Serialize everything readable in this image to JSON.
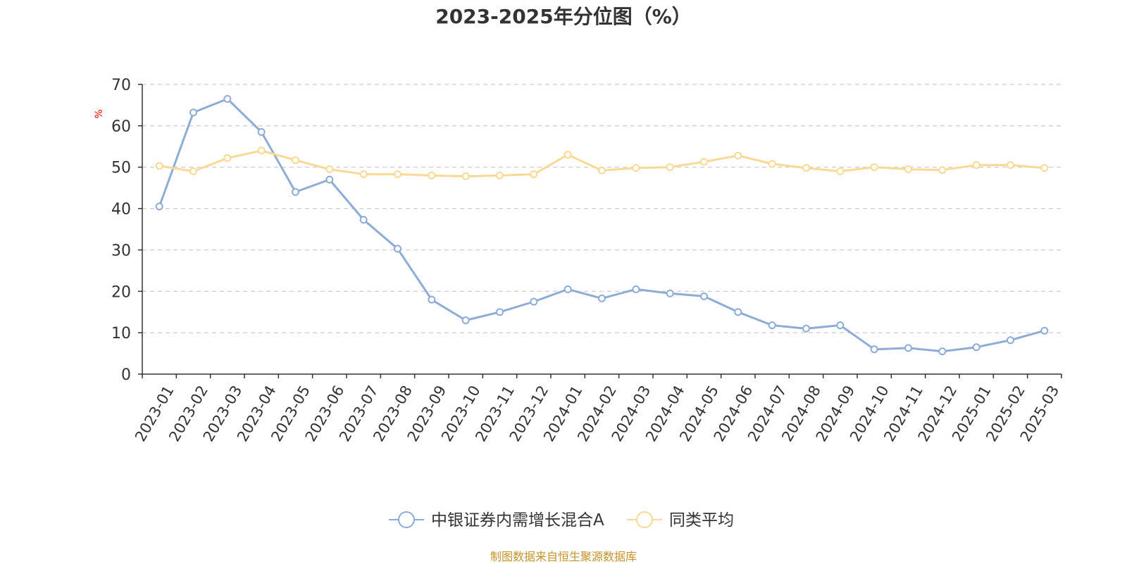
{
  "chart_data": {
    "type": "line",
    "title": "2023-2025年分位图（%）",
    "ylabel": "%",
    "ylim": [
      0,
      70
    ],
    "yticks": [
      0,
      10,
      20,
      30,
      40,
      50,
      60,
      70
    ],
    "grid": true,
    "legend_position": "bottom-center",
    "categories": [
      "2023-01",
      "2023-02",
      "2023-03",
      "2023-04",
      "2023-05",
      "2023-06",
      "2023-07",
      "2023-08",
      "2023-09",
      "2023-10",
      "2023-11",
      "2023-12",
      "2024-01",
      "2024-02",
      "2024-03",
      "2024-04",
      "2024-05",
      "2024-06",
      "2024-07",
      "2024-08",
      "2024-09",
      "2024-10",
      "2024-11",
      "2024-12",
      "2025-01",
      "2025-02",
      "2025-03"
    ],
    "series": [
      {
        "name": "中银证券内需增长混合A",
        "color": "#8eacd8",
        "values": [
          40.5,
          63.2,
          66.5,
          58.5,
          44.0,
          47.0,
          37.3,
          30.3,
          18.0,
          13.0,
          15.0,
          17.5,
          20.5,
          18.3,
          20.5,
          19.5,
          18.8,
          15.0,
          11.8,
          11.0,
          11.8,
          6.0,
          6.3,
          5.5,
          6.5,
          8.2,
          10.5
        ]
      },
      {
        "name": "同类平均",
        "color": "#f9d995",
        "values": [
          50.3,
          49.0,
          52.2,
          54.0,
          51.7,
          49.5,
          48.3,
          48.3,
          48.0,
          47.8,
          48.0,
          48.3,
          53.0,
          49.2,
          49.8,
          50.0,
          51.3,
          52.8,
          50.8,
          49.8,
          49.0,
          50.0,
          49.5,
          49.3,
          50.5,
          50.5,
          49.8
        ]
      }
    ]
  },
  "footer": {
    "source": "制图数据来自恒生聚源数据库"
  }
}
